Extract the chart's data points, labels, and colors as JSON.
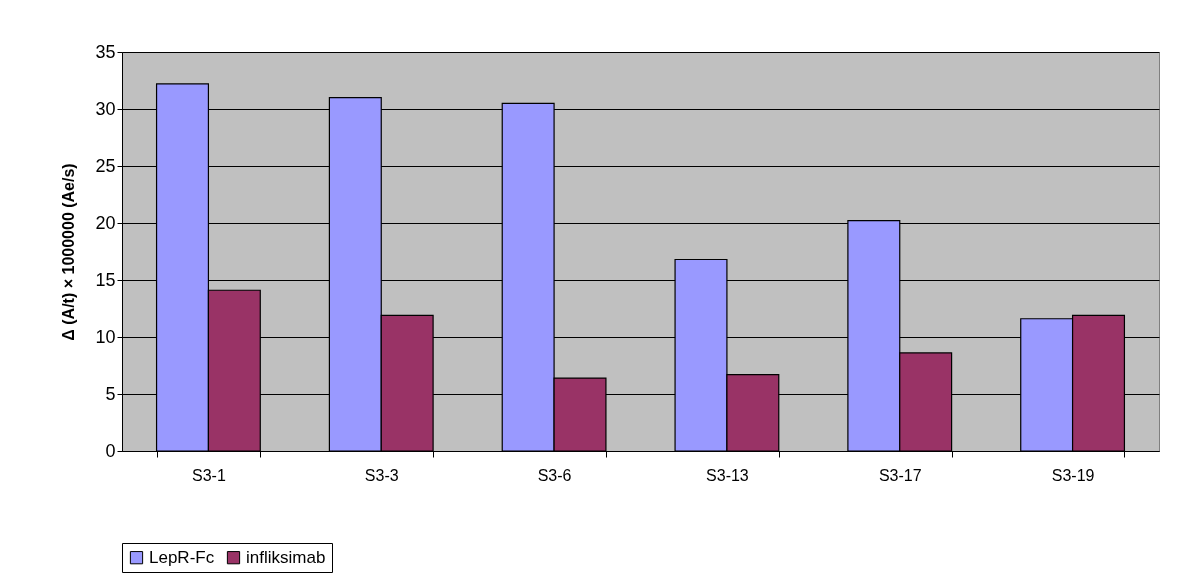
{
  "chart_data": {
    "type": "bar",
    "ylabel": "Δ (A/t) × 1000000 (Ae/s)",
    "categories": [
      "S3-1",
      "S3-3",
      "S3-6",
      "S3-13",
      "S3-17",
      "S3-19"
    ],
    "series": [
      {
        "name": "LepR-Fc",
        "color": "#9999ff",
        "values": [
          32.2,
          31.0,
          30.5,
          16.8,
          20.2,
          11.6
        ]
      },
      {
        "name": "infliksimab",
        "color": "#993366",
        "values": [
          14.1,
          11.9,
          6.4,
          6.7,
          8.6,
          11.9
        ]
      }
    ],
    "ylim": [
      0,
      35
    ],
    "yticks": [
      0,
      5,
      10,
      15,
      20,
      25,
      30,
      35
    ],
    "grid": "y",
    "legend": "bottom"
  }
}
